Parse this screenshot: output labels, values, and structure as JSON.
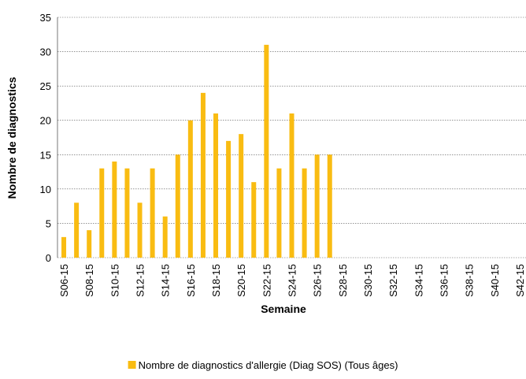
{
  "chart_data": {
    "type": "bar",
    "x_label": "Semaine",
    "y_label": "Nombre de diagnostics",
    "categories": [
      "S06-15",
      null,
      "S08-15",
      null,
      "S10-15",
      null,
      "S12-15",
      null,
      "S14-15",
      null,
      "S16-15",
      null,
      "S18-15",
      null,
      "S20-15",
      null,
      "S22-15",
      null,
      "S24-15",
      null,
      "S26-15",
      null,
      "S28-15",
      null,
      "S30-15",
      null,
      "S32-15",
      null,
      "S34-15",
      null,
      "S36-15",
      null,
      "S38-15",
      null,
      "S40-15",
      null,
      "S42-15"
    ],
    "series": [
      {
        "name": "Nombre de diagnostics d'allergie (Diag SOS) (Tous âges)",
        "color": "#f9bc12",
        "values": [
          3,
          8,
          4,
          13,
          14,
          13,
          8,
          13,
          6,
          15,
          20,
          24,
          21,
          17,
          18,
          11,
          31,
          13,
          21,
          13,
          15,
          15,
          null,
          null,
          null,
          null,
          null,
          null,
          null,
          null,
          null,
          null,
          null,
          null,
          null,
          null,
          null
        ]
      }
    ],
    "ylim": [
      0,
      35
    ],
    "yticks": [
      0,
      5,
      10,
      15,
      20,
      25,
      30,
      35
    ],
    "grid": true,
    "legend": "bottom"
  }
}
